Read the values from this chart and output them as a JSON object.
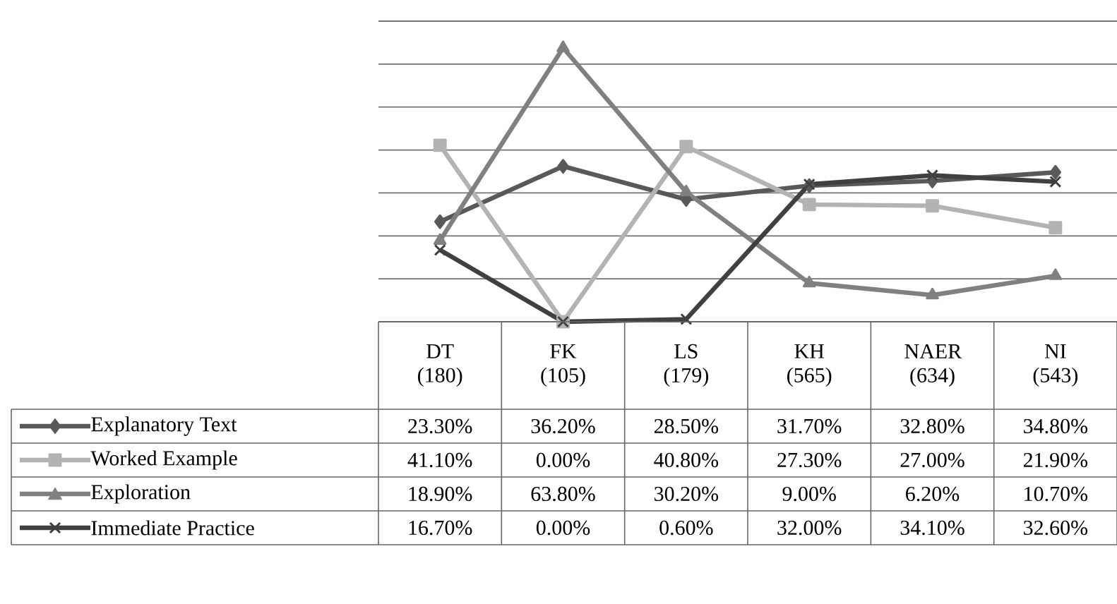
{
  "chart_data": {
    "type": "line",
    "categories": [
      "DT (180)",
      "FK (105)",
      "LS (179)",
      "KH (565)",
      "NAER (634)",
      "NI (543)"
    ],
    "ylim": [
      0,
      70
    ],
    "yticks": [
      {
        "value": 0,
        "label": null
      },
      {
        "value": 10,
        "label": null
      },
      {
        "value": 20,
        "label": null
      },
      {
        "value": 30,
        "label": null
      },
      {
        "value": 40,
        "label": null
      },
      {
        "value": 50,
        "label": null
      },
      {
        "value": 60,
        "label": null
      },
      {
        "value": 70,
        "label": null
      }
    ],
    "tick_labels": "x",
    "grid": "y",
    "legend": "bottom left",
    "series": [
      {
        "name": "Explanatory Text",
        "color": "#595959",
        "marker": "diamond",
        "values": [
          23.3,
          36.2,
          28.5,
          31.7,
          32.8,
          34.8
        ],
        "value_labels": [
          "23.30%",
          "36.20%",
          "28.50%",
          "31.70%",
          "32.80%",
          "34.80%"
        ]
      },
      {
        "name": "Worked Example",
        "color": "#b3b3b3",
        "marker": "square",
        "values": [
          41.1,
          0.0,
          40.8,
          27.3,
          27.0,
          21.9
        ],
        "value_labels": [
          "41.10%",
          "0.00%",
          "40.80%",
          "27.30%",
          "27.00%",
          "21.90%"
        ]
      },
      {
        "name": "Exploration",
        "color": "#808080",
        "marker": "triangle",
        "values": [
          18.9,
          63.8,
          30.2,
          9.0,
          6.2,
          10.7
        ],
        "value_labels": [
          "18.90%",
          "63.80%",
          "30.20%",
          "9.00%",
          "6.20%",
          "10.70%"
        ]
      },
      {
        "name": "Immediate Practice",
        "color": "#404040",
        "marker": "cross",
        "values": [
          16.7,
          0.0,
          0.6,
          32.0,
          34.1,
          32.6
        ],
        "value_labels": [
          "16.70%",
          "0.00%",
          "0.60%",
          "32.00%",
          "34.10%",
          "32.60%"
        ]
      }
    ]
  }
}
